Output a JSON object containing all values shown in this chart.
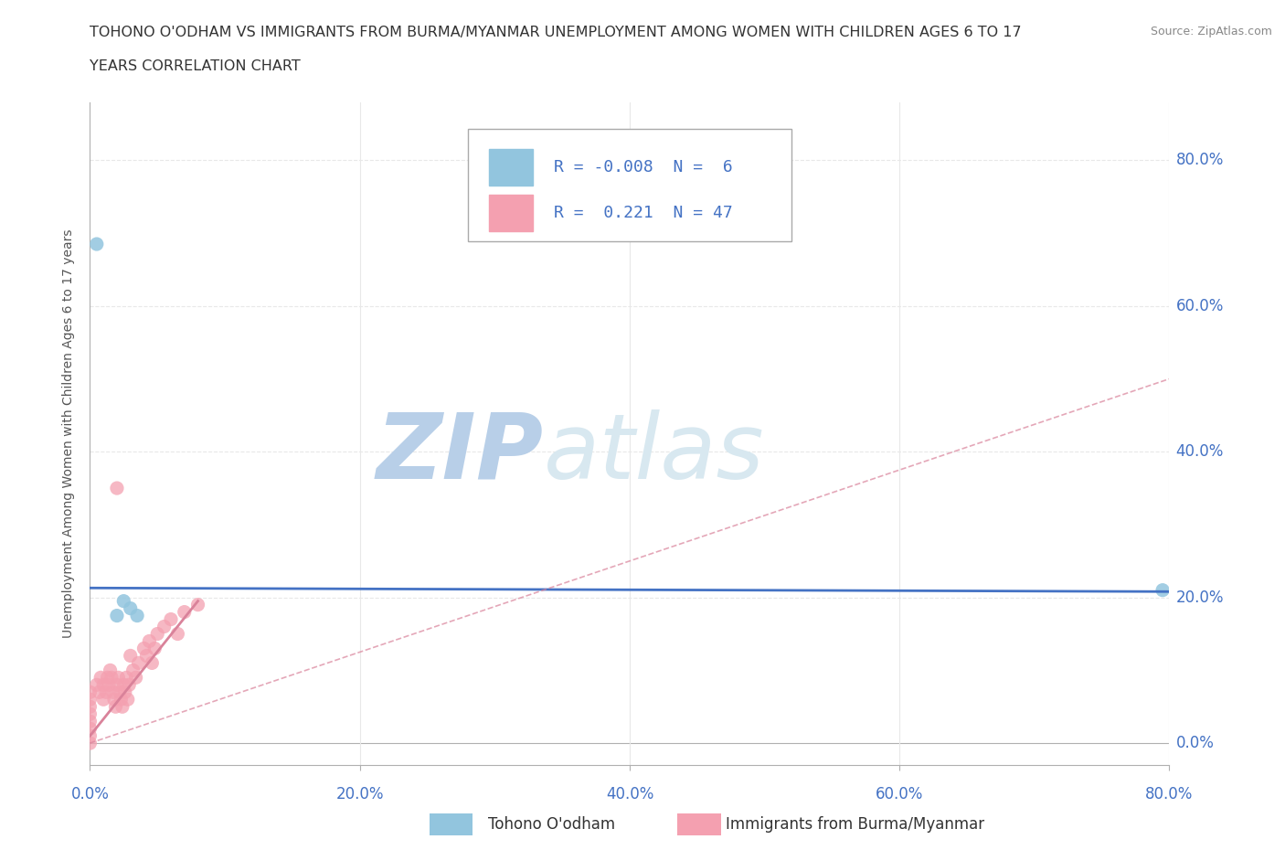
{
  "title_line1": "TOHONO O'ODHAM VS IMMIGRANTS FROM BURMA/MYANMAR UNEMPLOYMENT AMONG WOMEN WITH CHILDREN AGES 6 TO 17",
  "title_line2": "YEARS CORRELATION CHART",
  "source": "Source: ZipAtlas.com",
  "xmin": 0.0,
  "xmax": 0.8,
  "ymin": -0.03,
  "ymax": 0.88,
  "ytick_vals": [
    0.0,
    0.2,
    0.4,
    0.6,
    0.8
  ],
  "ytick_labels": [
    "0.0%",
    "20.0%",
    "40.0%",
    "60.0%",
    "80.0%"
  ],
  "xtick_vals": [
    0.0,
    0.2,
    0.4,
    0.6,
    0.8
  ],
  "xtick_labels": [
    "0.0%",
    "20.0%",
    "40.0%",
    "60.0%",
    "80.0%"
  ],
  "group1_name": "Tohono O'odham",
  "group1_color": "#92c5de",
  "group1_R": -0.008,
  "group1_N": 6,
  "group1_x": [
    0.005,
    0.02,
    0.025,
    0.03,
    0.035,
    0.795
  ],
  "group1_y": [
    0.685,
    0.175,
    0.195,
    0.185,
    0.175,
    0.21
  ],
  "group2_name": "Immigrants from Burma/Myanmar",
  "group2_color": "#f4a0b0",
  "group2_R": 0.221,
  "group2_N": 47,
  "group2_x": [
    0.0,
    0.0,
    0.0,
    0.0,
    0.0,
    0.0,
    0.0,
    0.0,
    0.005,
    0.007,
    0.008,
    0.01,
    0.01,
    0.012,
    0.013,
    0.014,
    0.015,
    0.016,
    0.017,
    0.018,
    0.019,
    0.02,
    0.021,
    0.022,
    0.023,
    0.024,
    0.025,
    0.026,
    0.027,
    0.028,
    0.029,
    0.03,
    0.032,
    0.034,
    0.036,
    0.04,
    0.042,
    0.044,
    0.046,
    0.048,
    0.05,
    0.055,
    0.06,
    0.065,
    0.07,
    0.08,
    0.02
  ],
  "group2_y": [
    0.0,
    0.01,
    0.02,
    0.03,
    0.04,
    0.05,
    0.06,
    0.07,
    0.08,
    0.07,
    0.09,
    0.06,
    0.08,
    0.07,
    0.09,
    0.08,
    0.1,
    0.09,
    0.07,
    0.06,
    0.05,
    0.08,
    0.09,
    0.07,
    0.06,
    0.05,
    0.08,
    0.07,
    0.09,
    0.06,
    0.08,
    0.12,
    0.1,
    0.09,
    0.11,
    0.13,
    0.12,
    0.14,
    0.11,
    0.13,
    0.15,
    0.16,
    0.17,
    0.15,
    0.18,
    0.19,
    0.35
  ],
  "trend1_color": "#4472c4",
  "trend1_y_start": 0.213,
  "trend1_y_end": 0.208,
  "trend2_color": "#d9829a",
  "trend2_y_start": 0.0,
  "trend2_y_end": 0.5,
  "trend2_solid_x_start": 0.0,
  "trend2_solid_x_end": 0.08,
  "trend2_solid_y_start": 0.01,
  "trend2_solid_y_end": 0.195,
  "watermark_zip": "ZIP",
  "watermark_atlas": "atlas",
  "watermark_color": "#cfe0ee",
  "background_color": "#ffffff",
  "grid_color": "#e8e8e8",
  "axis_color": "#4472c4",
  "spine_color": "#b0b0b0"
}
